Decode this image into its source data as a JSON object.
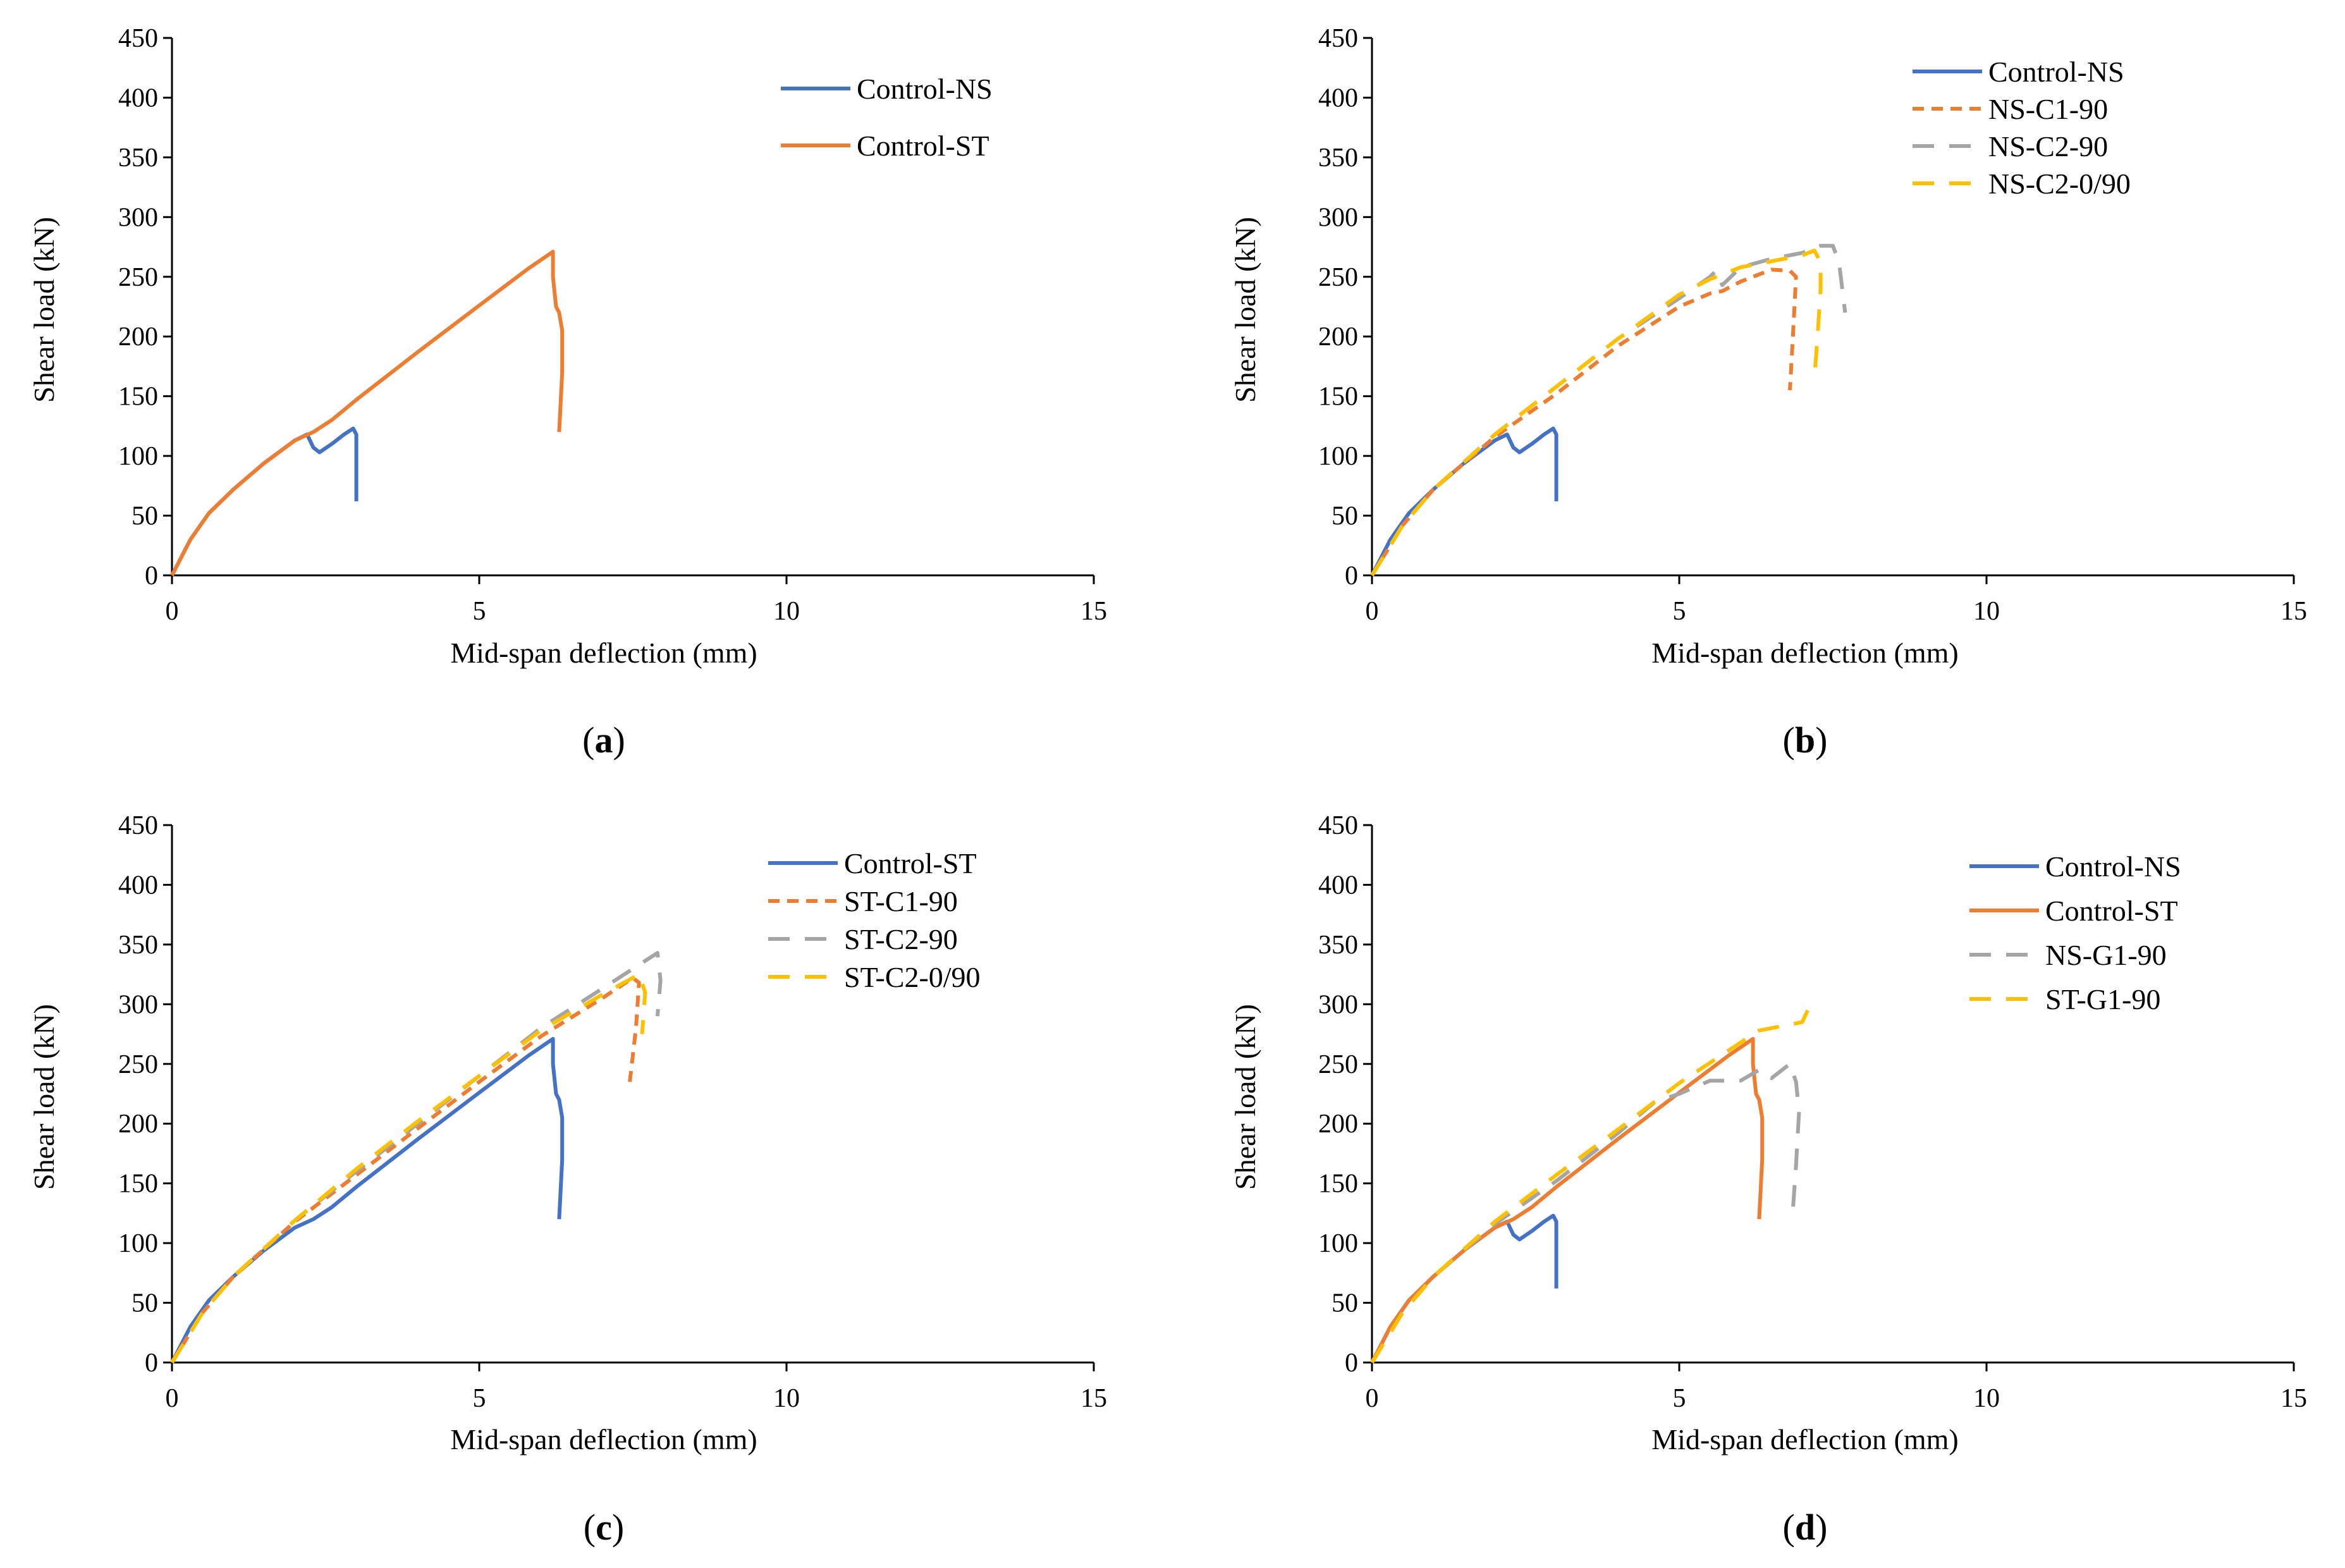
{
  "colors": {
    "Control-NS": "#4472C4",
    "Control-ST": "#ED7D31",
    "C1-90": "#ED7D31",
    "C2-90": "#A5A5A5",
    "C2-0/90": "#FFC000",
    "NS-G1-90": "#A5A5A5",
    "ST-G1-90": "#FFC000"
  },
  "chart_data": [
    {
      "type": "line",
      "panel": "a",
      "caption_letter": "a",
      "xlabel": "Mid-span deflection (mm)",
      "ylabel": "Shear load (kN)",
      "xlim": [
        0,
        15
      ],
      "ylim": [
        0,
        450
      ],
      "xticks": [
        0,
        5,
        10,
        15
      ],
      "yticks": [
        0,
        50,
        100,
        150,
        200,
        250,
        300,
        350,
        400,
        450
      ],
      "legend_position": "top-right",
      "series": [
        {
          "name": "Control-NS",
          "color_key": "Control-NS",
          "dash": "solid",
          "x": [
            0,
            0.3,
            0.6,
            1.0,
            1.5,
            2.0,
            2.2,
            2.3,
            2.4,
            2.6,
            2.8,
            2.95,
            3.0,
            3.0
          ],
          "y": [
            0,
            30,
            52,
            72,
            94,
            113,
            118,
            107,
            103,
            110,
            118,
            123,
            118,
            62
          ]
        },
        {
          "name": "Control-ST",
          "color_key": "Control-ST",
          "dash": "solid",
          "x": [
            0,
            0.3,
            0.6,
            1.0,
            1.5,
            2.0,
            2.3,
            2.6,
            3.0,
            4.0,
            5.0,
            5.8,
            6.2,
            6.2,
            6.25,
            6.3,
            6.35,
            6.35,
            6.3
          ],
          "y": [
            0,
            30,
            52,
            72,
            94,
            113,
            120,
            130,
            147,
            187,
            226,
            257,
            271,
            250,
            225,
            220,
            205,
            170,
            120
          ]
        }
      ]
    },
    {
      "type": "line",
      "panel": "b",
      "caption_letter": "b",
      "xlabel": "Mid-span deflection (mm)",
      "ylabel": "Shear load (kN)",
      "xlim": [
        0,
        15
      ],
      "ylim": [
        0,
        450
      ],
      "xticks": [
        0,
        5,
        10,
        15
      ],
      "yticks": [
        0,
        50,
        100,
        150,
        200,
        250,
        300,
        350,
        400,
        450
      ],
      "legend_position": "top-right",
      "series": [
        {
          "name": "Control-NS",
          "color_key": "Control-NS",
          "dash": "solid",
          "x": [
            0,
            0.3,
            0.6,
            1.0,
            1.5,
            2.0,
            2.2,
            2.3,
            2.4,
            2.6,
            2.8,
            2.95,
            3.0,
            3.0
          ],
          "y": [
            0,
            30,
            52,
            72,
            94,
            113,
            118,
            107,
            103,
            110,
            118,
            123,
            118,
            62
          ]
        },
        {
          "name": "NS-C1-90",
          "color_key": "C1-90",
          "dash": "short",
          "x": [
            0,
            0.5,
            1.0,
            2.0,
            3.0,
            4.0,
            5.0,
            5.5,
            5.7,
            6.0,
            6.2,
            6.5,
            6.8,
            6.9,
            6.85,
            6.8
          ],
          "y": [
            0,
            42,
            72,
            116,
            152,
            192,
            225,
            236,
            238,
            246,
            250,
            256,
            255,
            250,
            200,
            155
          ]
        },
        {
          "name": "NS-C2-90",
          "color_key": "C2-90",
          "dash": "long",
          "x": [
            0,
            0.5,
            1.0,
            2.0,
            3.0,
            4.0,
            5.0,
            5.5,
            5.6,
            5.7,
            6.0,
            6.5,
            7.0,
            7.3,
            7.5,
            7.6,
            7.7
          ],
          "y": [
            0,
            42,
            72,
            118,
            158,
            198,
            232,
            250,
            255,
            243,
            258,
            265,
            270,
            276,
            276,
            262,
            220
          ]
        },
        {
          "name": "NS-C2-0/90",
          "color_key": "C2-0/90",
          "dash": "long",
          "x": [
            0,
            0.5,
            1.0,
            2.0,
            3.0,
            4.0,
            5.0,
            5.5,
            6.0,
            6.5,
            7.0,
            7.2,
            7.3,
            7.3,
            7.25,
            7.2
          ],
          "y": [
            0,
            42,
            72,
            118,
            158,
            198,
            235,
            248,
            258,
            263,
            268,
            272,
            262,
            240,
            200,
            165
          ]
        }
      ]
    },
    {
      "type": "line",
      "panel": "c",
      "caption_letter": "c",
      "xlabel": "Mid-span deflection (mm)",
      "ylabel": "Shear load (kN)",
      "xlim": [
        0,
        15
      ],
      "ylim": [
        0,
        450
      ],
      "xticks": [
        0,
        5,
        10,
        15
      ],
      "yticks": [
        0,
        50,
        100,
        150,
        200,
        250,
        300,
        350,
        400,
        450
      ],
      "legend_position": "top-right",
      "series": [
        {
          "name": "Control-ST",
          "color_key": "Control-NS",
          "dash": "solid",
          "x": [
            0,
            0.3,
            0.6,
            1.0,
            1.5,
            2.0,
            2.3,
            2.6,
            3.0,
            4.0,
            5.0,
            5.8,
            6.2,
            6.2,
            6.25,
            6.3,
            6.35,
            6.35,
            6.3
          ],
          "y": [
            0,
            30,
            52,
            72,
            94,
            113,
            120,
            130,
            147,
            187,
            226,
            257,
            271,
            250,
            225,
            220,
            205,
            170,
            120
          ]
        },
        {
          "name": "ST-C1-90",
          "color_key": "C1-90",
          "dash": "short",
          "x": [
            0,
            0.5,
            1.0,
            2.0,
            3.0,
            4.0,
            5.0,
            6.0,
            7.0,
            7.5,
            7.6,
            7.55,
            7.45
          ],
          "y": [
            0,
            42,
            72,
            118,
            157,
            196,
            235,
            273,
            305,
            322,
            318,
            280,
            235
          ]
        },
        {
          "name": "ST-C2-90",
          "color_key": "C2-90",
          "dash": "long",
          "x": [
            0,
            0.5,
            1.0,
            2.0,
            3.0,
            4.0,
            5.0,
            6.0,
            7.0,
            7.9,
            7.95,
            7.9
          ],
          "y": [
            0,
            42,
            72,
            119,
            160,
            200,
            240,
            280,
            313,
            343,
            320,
            290
          ]
        },
        {
          "name": "ST-C2-0/90",
          "color_key": "C2-0/90",
          "dash": "long",
          "x": [
            0,
            0.5,
            1.0,
            2.0,
            3.0,
            4.0,
            5.0,
            6.0,
            7.0,
            7.6,
            7.7,
            7.65
          ],
          "y": [
            0,
            42,
            72,
            119,
            162,
            202,
            240,
            278,
            308,
            325,
            310,
            275
          ]
        }
      ]
    },
    {
      "type": "line",
      "panel": "d",
      "caption_letter": "d",
      "xlabel": "Mid-span deflection (mm)",
      "ylabel": "Shear load (kN)",
      "xlim": [
        0,
        15
      ],
      "ylim": [
        0,
        450
      ],
      "xticks": [
        0,
        5,
        10,
        15
      ],
      "yticks": [
        0,
        50,
        100,
        150,
        200,
        250,
        300,
        350,
        400,
        450
      ],
      "legend_position": "top-right",
      "series": [
        {
          "name": "Control-NS",
          "color_key": "Control-NS",
          "dash": "solid",
          "x": [
            0,
            0.3,
            0.6,
            1.0,
            1.5,
            2.0,
            2.2,
            2.3,
            2.4,
            2.6,
            2.8,
            2.95,
            3.0,
            3.0
          ],
          "y": [
            0,
            30,
            52,
            72,
            94,
            113,
            118,
            107,
            103,
            110,
            118,
            123,
            118,
            62
          ]
        },
        {
          "name": "Control-ST",
          "color_key": "Control-ST",
          "dash": "solid",
          "x": [
            0,
            0.3,
            0.6,
            1.0,
            1.5,
            2.0,
            2.3,
            2.6,
            3.0,
            4.0,
            5.0,
            5.8,
            6.2,
            6.2,
            6.25,
            6.3,
            6.35,
            6.35,
            6.3
          ],
          "y": [
            0,
            30,
            52,
            72,
            94,
            113,
            120,
            130,
            147,
            187,
            226,
            257,
            271,
            250,
            225,
            220,
            205,
            170,
            120
          ]
        },
        {
          "name": "NS-G1-90",
          "color_key": "NS-G1-90",
          "dash": "long",
          "x": [
            0,
            0.5,
            1.0,
            2.0,
            3.0,
            4.0,
            4.6,
            5.0,
            5.5,
            6.0,
            6.3,
            6.5,
            6.8,
            6.9,
            6.95,
            6.9,
            6.85
          ],
          "y": [
            0,
            42,
            72,
            116,
            152,
            192,
            218,
            225,
            236,
            236,
            245,
            238,
            250,
            235,
            210,
            165,
            128
          ]
        },
        {
          "name": "ST-G1-90",
          "color_key": "ST-G1-90",
          "dash": "long",
          "x": [
            0,
            0.5,
            1.0,
            2.0,
            3.0,
            4.0,
            5.0,
            6.0,
            6.3,
            7.0,
            7.1,
            7.15
          ],
          "y": [
            0,
            42,
            72,
            118,
            157,
            195,
            234,
            268,
            278,
            285,
            296,
            307
          ]
        }
      ]
    }
  ]
}
